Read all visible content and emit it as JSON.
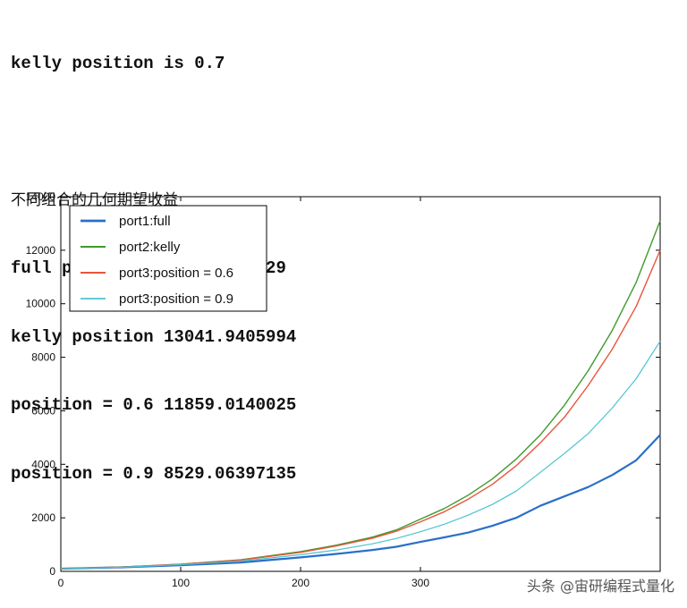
{
  "output": {
    "line1": "kelly position is 0.7",
    "heading": "不同组合的几何期望收益",
    "lines": [
      "full position 5042.56649829",
      "kelly position 13041.9405994",
      "position = 0.6 11859.0140025",
      "position = 0.9 8529.06397135"
    ]
  },
  "chart_data": {
    "type": "line",
    "x_ticks": [
      0,
      100,
      200,
      300
    ],
    "y_ticks": [
      0,
      2000,
      4000,
      6000,
      8000,
      10000,
      12000,
      14000
    ],
    "xlim": [
      0,
      500
    ],
    "ylim": [
      0,
      14000
    ],
    "legend_position": "top-left",
    "grid": false,
    "x": [
      0,
      50,
      100,
      150,
      200,
      230,
      260,
      280,
      300,
      320,
      340,
      360,
      380,
      400,
      420,
      440,
      460,
      480,
      500
    ],
    "series": [
      {
        "name": "port1:full",
        "color": "#2a6fc9",
        "width": 2.2,
        "values": [
          100,
          150,
          230,
          330,
          520,
          650,
          800,
          920,
          1100,
          1270,
          1450,
          1700,
          2000,
          2450,
          2800,
          3150,
          3600,
          4150,
          5100
        ]
      },
      {
        "name": "port2:kelly",
        "color": "#3f9a2d",
        "width": 1.4,
        "values": [
          100,
          160,
          270,
          430,
          740,
          980,
          1280,
          1550,
          1950,
          2350,
          2850,
          3450,
          4200,
          5100,
          6200,
          7500,
          9000,
          10800,
          13100
        ]
      },
      {
        "name": "port3:position = 0.6",
        "color": "#e8553a",
        "width": 1.4,
        "values": [
          100,
          160,
          265,
          420,
          710,
          950,
          1240,
          1500,
          1850,
          2230,
          2700,
          3250,
          3950,
          4800,
          5750,
          6950,
          8300,
          9900,
          12000
        ]
      },
      {
        "name": "port3:position = 0.9",
        "color": "#4cc3d0",
        "width": 1.2,
        "values": [
          100,
          155,
          250,
          380,
          620,
          800,
          1030,
          1230,
          1480,
          1760,
          2100,
          2500,
          3000,
          3700,
          4400,
          5150,
          6100,
          7200,
          8600
        ]
      }
    ]
  },
  "watermark": "头条 @宙研编程式量化"
}
